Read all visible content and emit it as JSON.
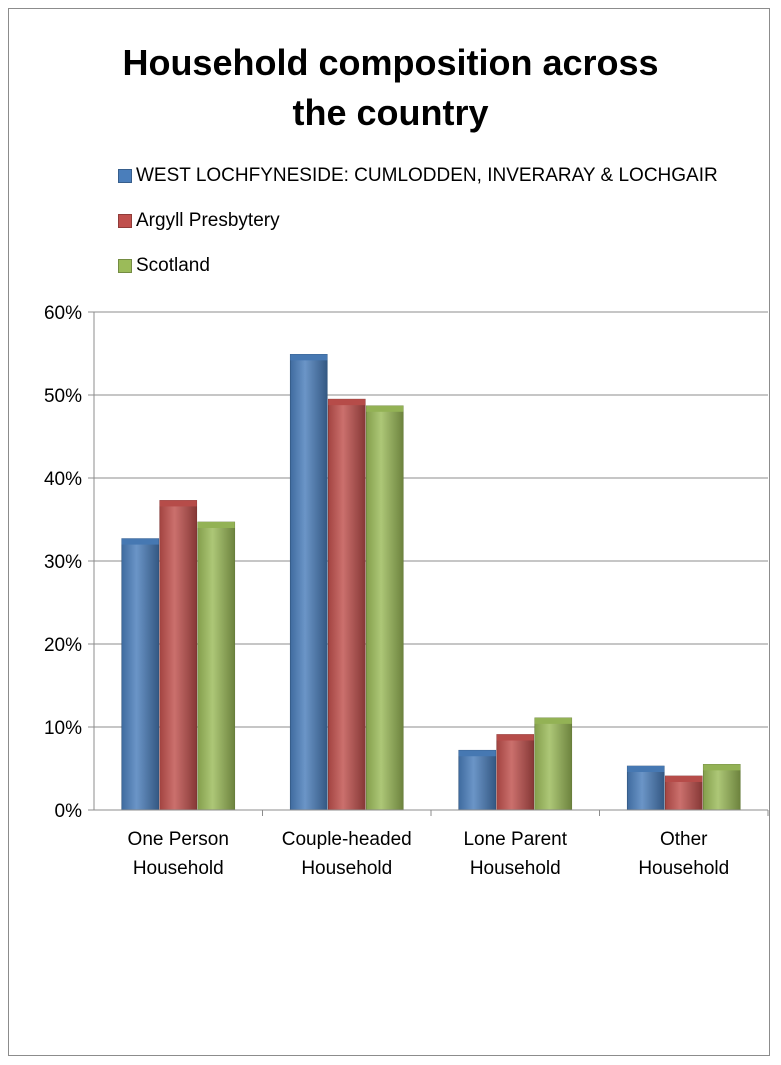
{
  "chart_data": {
    "type": "bar",
    "title": "Household composition across the country",
    "title_lines": [
      "Household composition across",
      "the country"
    ],
    "xlabel": "",
    "ylabel": "",
    "categories": [
      "One Person Household",
      "Couple-headed Household",
      "Lone Parent Household",
      "Other Household"
    ],
    "category_lines": [
      [
        "One Person",
        "Household"
      ],
      [
        "Couple-headed",
        "Household"
      ],
      [
        "Lone Parent",
        "Household"
      ],
      [
        "Other",
        "Household"
      ]
    ],
    "series": [
      {
        "name": "WEST LOCHFYNESIDE: CUMLODDEN, INVERARAY & LOCHGAIR",
        "color": "#4a7ebb",
        "values": [
          32.7,
          54.9,
          7.2,
          5.3
        ]
      },
      {
        "name": "Argyll Presbytery",
        "color": "#c0504d",
        "values": [
          37.3,
          49.5,
          9.1,
          4.1
        ]
      },
      {
        "name": "Scotland",
        "color": "#9bbb59",
        "values": [
          34.7,
          48.7,
          11.1,
          5.5
        ]
      }
    ],
    "ylim": [
      0,
      60
    ],
    "yticks": [
      0,
      10,
      20,
      30,
      40,
      50,
      60
    ],
    "ytick_labels": [
      "0%",
      "10%",
      "20%",
      "30%",
      "40%",
      "50%",
      "60%"
    ],
    "grid": true,
    "legend_position": "top-left"
  }
}
